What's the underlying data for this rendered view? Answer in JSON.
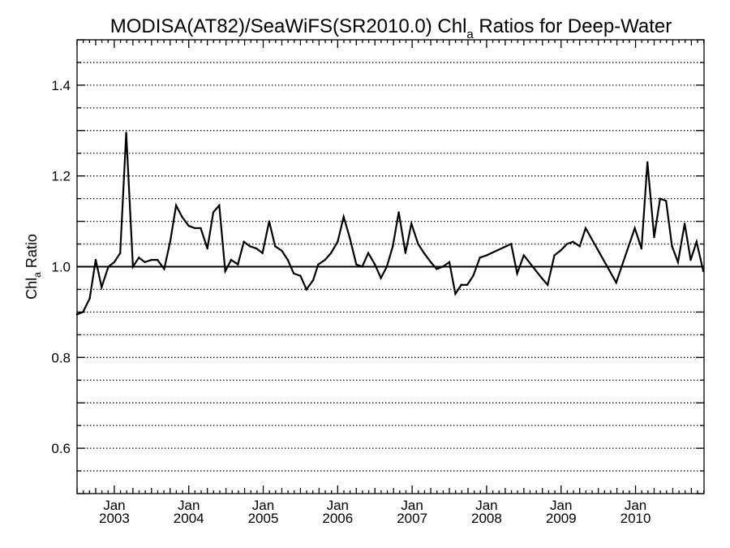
{
  "chart_data": {
    "type": "line",
    "title_main": "MODISA(AT82)/SeaWiFS(SR2010.0)  Chl",
    "title_sub": "a",
    "title_rest": " Ratios for Deep-Water",
    "ylabel_main": "Chl",
    "ylabel_sub": "a",
    "ylabel_rest": " Ratio",
    "xlim": [
      2002.5,
      2010.92
    ],
    "ylim": [
      0.5,
      1.5
    ],
    "grid": true,
    "grid_style": "dotted",
    "reference_line": 1.0,
    "y_ticks": [
      0.6,
      0.8,
      1.0,
      1.2,
      1.4
    ],
    "y_tick_labels": [
      "0.6",
      "0.8",
      "1.0",
      "1.2",
      "1.4"
    ],
    "x_ticks": [
      {
        "month": "Jan",
        "year": "2003",
        "value": 2003.0
      },
      {
        "month": "Jan",
        "year": "2004",
        "value": 2004.0
      },
      {
        "month": "Jan",
        "year": "2005",
        "value": 2005.0
      },
      {
        "month": "Jan",
        "year": "2006",
        "value": 2006.0
      },
      {
        "month": "Jan",
        "year": "2007",
        "value": 2007.0
      },
      {
        "month": "Jan",
        "year": "2008",
        "value": 2008.0
      },
      {
        "month": "Jan",
        "year": "2009",
        "value": 2009.0
      },
      {
        "month": "Jan",
        "year": "2010",
        "value": 2010.0
      }
    ],
    "series": [
      {
        "color": "#000000",
        "x": [
          2002.5,
          2002.58,
          2002.67,
          2002.75,
          2002.83,
          2002.92,
          2003.0,
          2003.08,
          2003.16,
          2003.25,
          2003.33,
          2003.41,
          2003.5,
          2003.58,
          2003.67,
          2003.75,
          2003.83,
          2003.91,
          2004.0,
          2004.08,
          2004.16,
          2004.25,
          2004.33,
          2004.41,
          2004.49,
          2004.57,
          2004.66,
          2004.74,
          2004.82,
          2004.91,
          2004.99,
          2005.08,
          2005.16,
          2005.25,
          2005.33,
          2005.41,
          2005.5,
          2005.58,
          2005.67,
          2005.74,
          2005.83,
          2005.91,
          2006.0,
          2006.08,
          2006.16,
          2006.25,
          2006.33,
          2006.41,
          2006.5,
          2006.58,
          2006.66,
          2006.74,
          2006.82,
          2006.91,
          2006.99,
          2007.08,
          2007.16,
          2007.25,
          2007.33,
          2007.41,
          2007.5,
          2007.58,
          2007.66,
          2007.74,
          2007.82,
          2007.91,
          2008.0,
          2008.33,
          2008.41,
          2008.5,
          2008.74,
          2008.82,
          2008.91,
          2008.99,
          2009.08,
          2009.16,
          2009.25,
          2009.33,
          2009.74,
          2009.99,
          2010.08,
          2010.16,
          2010.25,
          2010.33,
          2010.41,
          2010.49,
          2010.57,
          2010.66,
          2010.74,
          2010.82,
          2010.91
        ],
        "y": [
          0.895,
          0.9,
          0.93,
          1.015,
          0.955,
          1.0,
          1.01,
          1.03,
          1.295,
          1.0,
          1.02,
          1.01,
          1.015,
          1.015,
          0.995,
          1.055,
          1.135,
          1.11,
          1.09,
          1.085,
          1.085,
          1.04,
          1.12,
          1.135,
          0.99,
          1.015,
          1.005,
          1.055,
          1.045,
          1.04,
          1.03,
          1.1,
          1.045,
          1.035,
          1.015,
          0.985,
          0.98,
          0.95,
          0.97,
          1.005,
          1.015,
          1.03,
          1.055,
          1.11,
          1.065,
          1.005,
          1.0,
          1.03,
          1.005,
          0.975,
          1.0,
          1.045,
          1.12,
          1.03,
          1.095,
          1.05,
          1.03,
          1.01,
          0.995,
          1.0,
          1.01,
          0.94,
          0.96,
          0.96,
          0.98,
          1.02,
          1.025,
          1.05,
          0.985,
          1.025,
          0.975,
          0.96,
          1.025,
          1.035,
          1.05,
          1.055,
          1.045,
          1.085,
          0.965,
          1.085,
          1.04,
          1.23,
          1.065,
          1.15,
          1.145,
          1.045,
          1.01,
          1.095,
          1.015,
          1.055,
          0.99
        ]
      }
    ]
  }
}
